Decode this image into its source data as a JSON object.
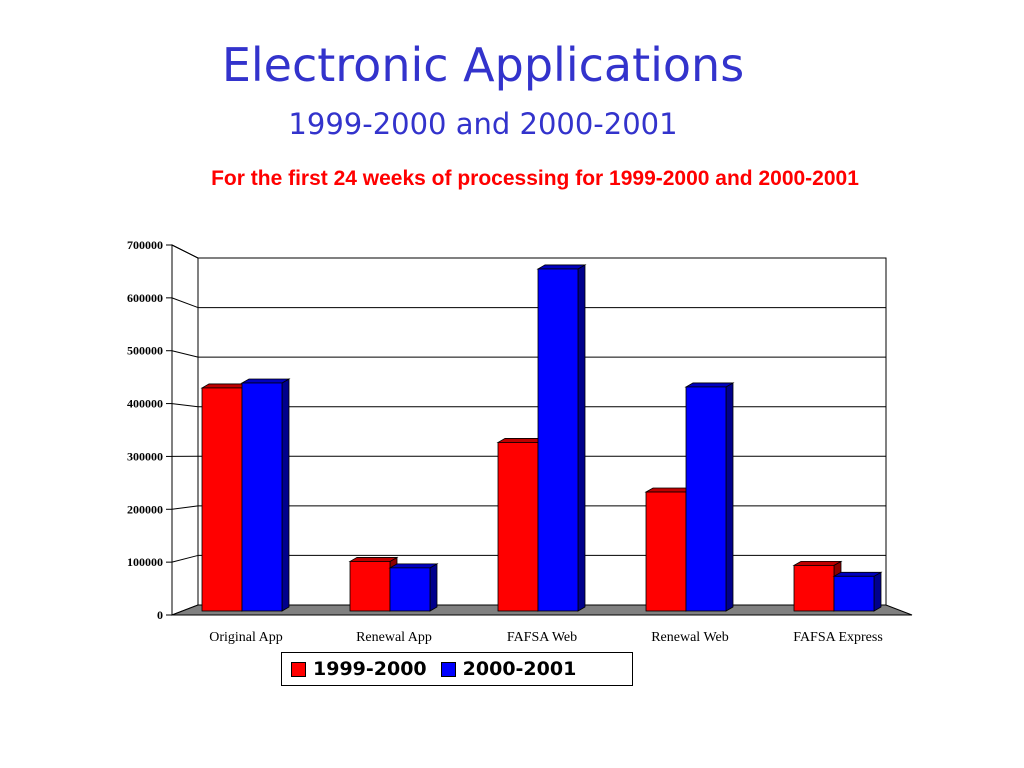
{
  "slide": {
    "title": "Electronic Applications",
    "subtitle": "1999-2000 and 2000-2001",
    "note": "For the first 24 weeks of processing for 1999-2000 and 2000-2001"
  },
  "chart_data": {
    "type": "bar",
    "title": "",
    "xlabel": "",
    "ylabel": "",
    "categories": [
      "Original App",
      "Renewal App",
      "FAFSA Web",
      "Renewal Web",
      "FAFSA Express"
    ],
    "series": [
      {
        "name": "1999-2000",
        "color": "#ff0000",
        "values": [
          450000,
          100000,
          340000,
          240000,
          92000
        ]
      },
      {
        "name": "2000-2001",
        "color": "#0000ff",
        "values": [
          460000,
          87000,
          690000,
          452000,
          70000
        ]
      }
    ],
    "ylim": [
      0,
      700000
    ],
    "yticks": [
      "0",
      "100000",
      "200000",
      "300000",
      "400000",
      "500000",
      "600000",
      "700000"
    ],
    "grid": true,
    "three_d": true,
    "legend_position": "bottom"
  }
}
